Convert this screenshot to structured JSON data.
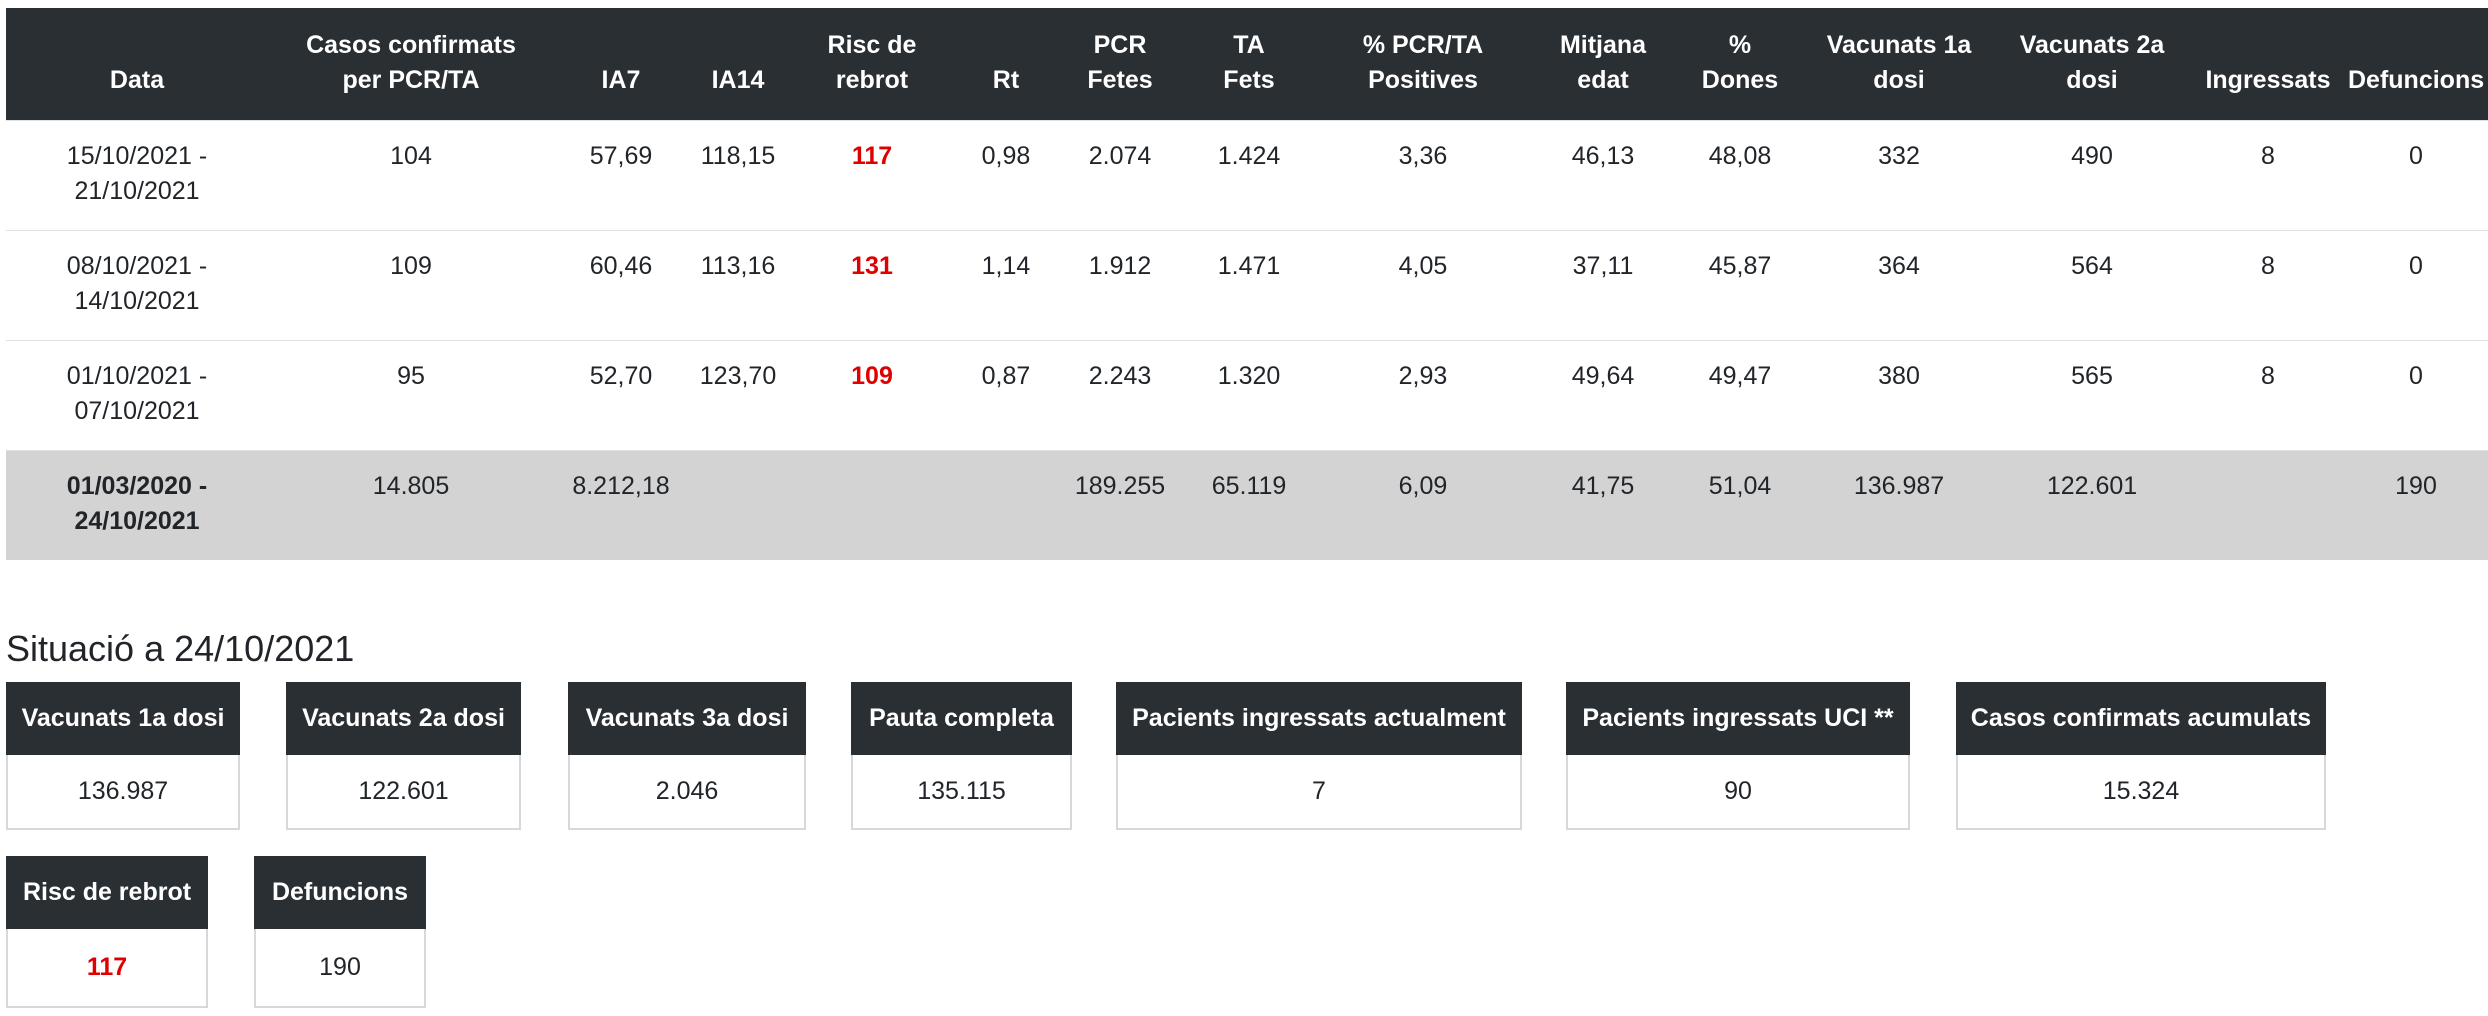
{
  "table": {
    "headers": [
      [
        "Data"
      ],
      [
        "Casos confirmats",
        "per PCR/TA"
      ],
      [
        "IA7"
      ],
      [
        "IA14"
      ],
      [
        "Risc de",
        "rebrot"
      ],
      [
        "Rt"
      ],
      [
        "PCR",
        "Fetes"
      ],
      [
        "TA",
        "Fets"
      ],
      [
        "% PCR/TA",
        "Positives"
      ],
      [
        "Mitjana",
        "edat"
      ],
      [
        "%",
        "Dones"
      ],
      [
        "Vacunats 1a",
        "dosi"
      ],
      [
        "Vacunats 2a",
        "dosi"
      ],
      [
        "Ingressats"
      ],
      [
        "Defuncions"
      ]
    ],
    "rows": [
      {
        "date": [
          "15/10/2021 -",
          "21/10/2021"
        ],
        "cells": [
          "104",
          "57,69",
          "118,15",
          "117",
          "0,98",
          "2.074",
          "1.424",
          "3,36",
          "46,13",
          "48,08",
          "332",
          "490",
          "8",
          "0"
        ]
      },
      {
        "date": [
          "08/10/2021 -",
          "14/10/2021"
        ],
        "cells": [
          "109",
          "60,46",
          "113,16",
          "131",
          "1,14",
          "1.912",
          "1.471",
          "4,05",
          "37,11",
          "45,87",
          "364",
          "564",
          "8",
          "0"
        ]
      },
      {
        "date": [
          "01/10/2021 -",
          "07/10/2021"
        ],
        "cells": [
          "95",
          "52,70",
          "123,70",
          "109",
          "0,87",
          "2.243",
          "1.320",
          "2,93",
          "49,64",
          "49,47",
          "380",
          "565",
          "8",
          "0"
        ]
      }
    ],
    "total": {
      "date": [
        "01/03/2020 -",
        "24/10/2021"
      ],
      "cells": [
        "14.805",
        "8.212,18",
        "",
        "",
        "",
        "189.255",
        "65.119",
        "6,09",
        "41,75",
        "51,04",
        "136.987",
        "122.601",
        "",
        "190"
      ]
    }
  },
  "situation": {
    "title": "Situació a 24/10/2021",
    "cards": [
      {
        "label": "Vacunats 1a dosi",
        "value": "136.987"
      },
      {
        "label": "Vacunats 2a dosi",
        "value": "122.601"
      },
      {
        "label": "Vacunats 3a dosi",
        "value": "2.046"
      },
      {
        "label": "Pauta completa",
        "value": "135.115"
      },
      {
        "label": "Pacients ingressats actualment",
        "value": "7"
      },
      {
        "label": "Pacients ingressats UCI **",
        "value": "90"
      },
      {
        "label": "Casos confirmats acumulats",
        "value": "15.324"
      },
      {
        "label": "Risc de rebrot",
        "value": "117"
      },
      {
        "label": "Defuncions",
        "value": "190"
      }
    ]
  },
  "colors": {
    "header_bg": "#2a2f34",
    "total_row_bg": "#d3d3d3",
    "risk_red": "#e00000"
  }
}
